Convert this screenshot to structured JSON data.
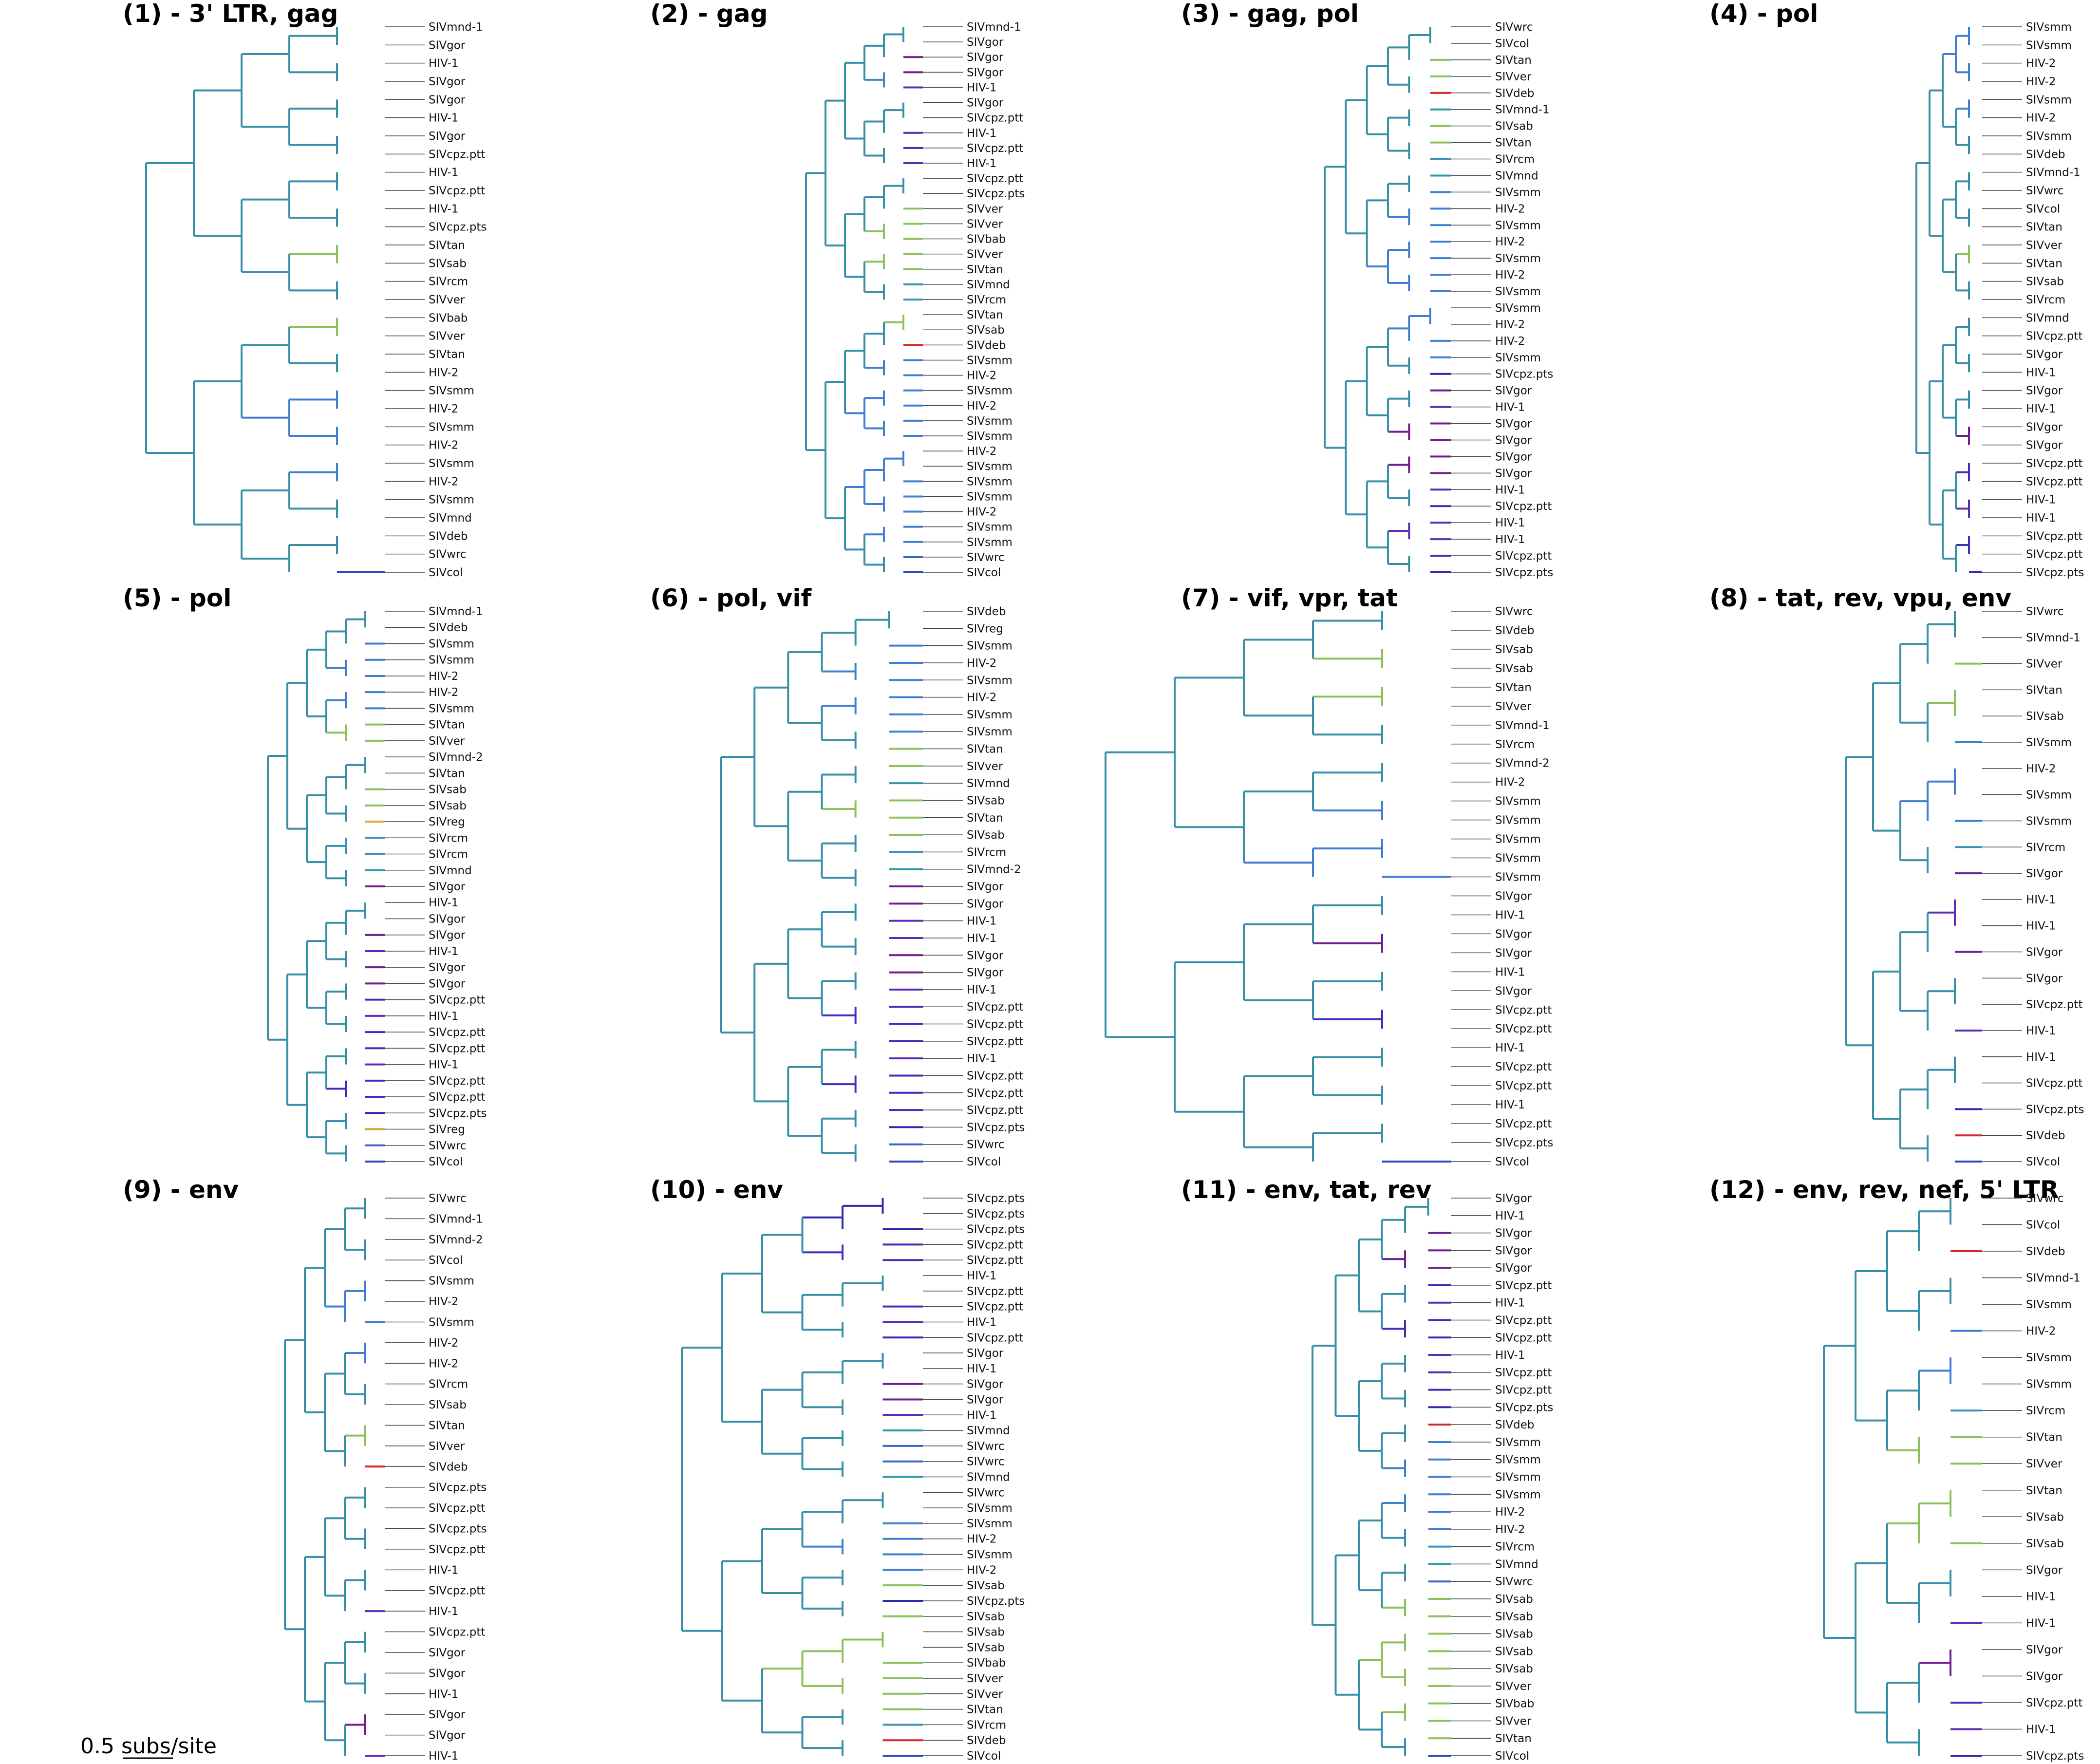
{
  "colors": {
    "HIV-1": "#5b2cb8",
    "SIVcpz.ptt": "#3b2fc0",
    "SIVcpz.pts": "#2c2aa8",
    "SIVgor": "#6f1d8f",
    "HIV-2": "#3f7ed0",
    "SIVsmm": "#3f7ed0",
    "SIVmnd": "#2f9aa6",
    "SIVmnd-1": "#2f9aa6",
    "SIVmnd-2": "#2f9aa6",
    "SIVrcm": "#3a92b8",
    "SIVdeb": "#d62828",
    "SIVwrc": "#3a64cc",
    "SIVcol": "#2b44c6",
    "SIVreg": "#d4a52c",
    "SIVtan": "#8cc05a",
    "SIVsab": "#8cc05a",
    "SIVver": "#8cc05a",
    "SIVbab": "#8cc05a",
    "internal": "#a9a9b8",
    "internal_teal": "#3a8fa8"
  },
  "scale": {
    "label": "0.5 subs/site"
  },
  "panels": [
    {
      "title": "(1) - 3' LTR, gag",
      "leaves": [
        "SIVmnd-1",
        "SIVgor",
        "HIV-1",
        "SIVgor",
        "SIVgor",
        "HIV-1",
        "SIVgor",
        "SIVcpz.ptt",
        "HIV-1",
        "SIVcpz.ptt",
        "HIV-1",
        "SIVcpz.pts",
        "SIVtan",
        "SIVsab",
        "SIVrcm",
        "SIVver",
        "SIVbab",
        "SIVver",
        "SIVtan",
        "HIV-2",
        "SIVsmm",
        "HIV-2",
        "SIVsmm",
        "HIV-2",
        "SIVsmm",
        "HIV-2",
        "SIVsmm",
        "SIVmnd",
        "SIVdeb",
        "SIVwrc",
        "SIVcol"
      ]
    },
    {
      "title": "(2) - gag",
      "leaves": [
        "SIVmnd-1",
        "SIVgor",
        "SIVgor",
        "SIVgor",
        "HIV-1",
        "SIVgor",
        "SIVcpz.ptt",
        "HIV-1",
        "SIVcpz.ptt",
        "HIV-1",
        "SIVcpz.ptt",
        "SIVcpz.pts",
        "SIVver",
        "SIVver",
        "SIVbab",
        "SIVver",
        "SIVtan",
        "SIVmnd",
        "SIVrcm",
        "SIVtan",
        "SIVsab",
        "SIVdeb",
        "SIVsmm",
        "HIV-2",
        "SIVsmm",
        "HIV-2",
        "SIVsmm",
        "SIVsmm",
        "HIV-2",
        "SIVsmm",
        "SIVsmm",
        "SIVsmm",
        "HIV-2",
        "SIVsmm",
        "SIVsmm",
        "SIVwrc",
        "SIVcol"
      ]
    },
    {
      "title": "(3) - gag, pol",
      "leaves": [
        "SIVwrc",
        "SIVcol",
        "SIVtan",
        "SIVver",
        "SIVdeb",
        "SIVmnd-1",
        "SIVsab",
        "SIVtan",
        "SIVrcm",
        "SIVmnd",
        "SIVsmm",
        "HIV-2",
        "SIVsmm",
        "HIV-2",
        "SIVsmm",
        "HIV-2",
        "SIVsmm",
        "SIVsmm",
        "HIV-2",
        "HIV-2",
        "SIVsmm",
        "SIVcpz.pts",
        "SIVgor",
        "HIV-1",
        "SIVgor",
        "SIVgor",
        "SIVgor",
        "SIVgor",
        "HIV-1",
        "SIVcpz.ptt",
        "HIV-1",
        "HIV-1",
        "SIVcpz.ptt",
        "SIVcpz.pts"
      ]
    },
    {
      "title": "(4) - pol",
      "leaves": [
        "SIVsmm",
        "SIVsmm",
        "HIV-2",
        "HIV-2",
        "SIVsmm",
        "HIV-2",
        "SIVsmm",
        "SIVdeb",
        "SIVmnd-1",
        "SIVwrc",
        "SIVcol",
        "SIVtan",
        "SIVver",
        "SIVtan",
        "SIVsab",
        "SIVrcm",
        "SIVmnd",
        "SIVcpz.ptt",
        "SIVgor",
        "HIV-1",
        "SIVgor",
        "HIV-1",
        "SIVgor",
        "SIVgor",
        "SIVcpz.ptt",
        "SIVcpz.ptt",
        "HIV-1",
        "HIV-1",
        "SIVcpz.ptt",
        "SIVcpz.ptt",
        "SIVcpz.pts"
      ]
    },
    {
      "title": "(5) - pol",
      "leaves": [
        "SIVmnd-1",
        "SIVdeb",
        "SIVsmm",
        "SIVsmm",
        "HIV-2",
        "HIV-2",
        "SIVsmm",
        "SIVtan",
        "SIVver",
        "SIVmnd-2",
        "SIVtan",
        "SIVsab",
        "SIVsab",
        "SIVreg",
        "SIVrcm",
        "SIVrcm",
        "SIVmnd",
        "SIVgor",
        "HIV-1",
        "SIVgor",
        "SIVgor",
        "HIV-1",
        "SIVgor",
        "SIVgor",
        "SIVcpz.ptt",
        "HIV-1",
        "SIVcpz.ptt",
        "SIVcpz.ptt",
        "HIV-1",
        "SIVcpz.ptt",
        "SIVcpz.ptt",
        "SIVcpz.pts",
        "SIVreg",
        "SIVwrc",
        "SIVcol"
      ]
    },
    {
      "title": "(6) - pol, vif",
      "leaves": [
        "SIVdeb",
        "SIVreg",
        "SIVsmm",
        "HIV-2",
        "SIVsmm",
        "HIV-2",
        "SIVsmm",
        "SIVsmm",
        "SIVtan",
        "SIVver",
        "SIVmnd",
        "SIVsab",
        "SIVtan",
        "SIVsab",
        "SIVrcm",
        "SIVmnd-2",
        "SIVgor",
        "SIVgor",
        "HIV-1",
        "HIV-1",
        "SIVgor",
        "SIVgor",
        "HIV-1",
        "SIVcpz.ptt",
        "SIVcpz.ptt",
        "SIVcpz.ptt",
        "HIV-1",
        "SIVcpz.ptt",
        "SIVcpz.ptt",
        "SIVcpz.ptt",
        "SIVcpz.pts",
        "SIVwrc",
        "SIVcol"
      ]
    },
    {
      "title": "(7) - vif, vpr, tat",
      "leaves": [
        "SIVwrc",
        "SIVdeb",
        "SIVsab",
        "SIVsab",
        "SIVtan",
        "SIVver",
        "SIVmnd-1",
        "SIVrcm",
        "SIVmnd-2",
        "HIV-2",
        "SIVsmm",
        "SIVsmm",
        "SIVsmm",
        "SIVsmm",
        "SIVsmm",
        "SIVgor",
        "HIV-1",
        "SIVgor",
        "SIVgor",
        "HIV-1",
        "SIVgor",
        "SIVcpz.ptt",
        "SIVcpz.ptt",
        "HIV-1",
        "SIVcpz.ptt",
        "SIVcpz.ptt",
        "HIV-1",
        "SIVcpz.ptt",
        "SIVcpz.pts",
        "SIVcol"
      ]
    },
    {
      "title": "(8) - tat, rev, vpu, env",
      "leaves": [
        "SIVwrc",
        "SIVmnd-1",
        "SIVver",
        "SIVtan",
        "SIVsab",
        "SIVsmm",
        "HIV-2",
        "SIVsmm",
        "SIVsmm",
        "SIVrcm",
        "SIVgor",
        "HIV-1",
        "HIV-1",
        "SIVgor",
        "SIVgor",
        "SIVcpz.ptt",
        "HIV-1",
        "HIV-1",
        "SIVcpz.ptt",
        "SIVcpz.pts",
        "SIVdeb",
        "SIVcol"
      ]
    },
    {
      "title": "(9) - env",
      "leaves": [
        "SIVwrc",
        "SIVmnd-1",
        "SIVmnd-2",
        "SIVcol",
        "SIVsmm",
        "HIV-2",
        "SIVsmm",
        "HIV-2",
        "HIV-2",
        "SIVrcm",
        "SIVsab",
        "SIVtan",
        "SIVver",
        "SIVdeb",
        "SIVcpz.pts",
        "SIVcpz.ptt",
        "SIVcpz.pts",
        "SIVcpz.ptt",
        "HIV-1",
        "SIVcpz.ptt",
        "HIV-1",
        "SIVcpz.ptt",
        "SIVgor",
        "SIVgor",
        "HIV-1",
        "SIVgor",
        "SIVgor",
        "HIV-1"
      ]
    },
    {
      "title": "(10) - env",
      "leaves": [
        "SIVcpz.pts",
        "SIVcpz.pts",
        "SIVcpz.pts",
        "SIVcpz.ptt",
        "SIVcpz.ptt",
        "HIV-1",
        "SIVcpz.ptt",
        "SIVcpz.ptt",
        "HIV-1",
        "SIVcpz.ptt",
        "SIVgor",
        "HIV-1",
        "SIVgor",
        "SIVgor",
        "HIV-1",
        "SIVmnd",
        "SIVwrc",
        "SIVwrc",
        "SIVmnd",
        "SIVwrc",
        "SIVsmm",
        "SIVsmm",
        "HIV-2",
        "SIVsmm",
        "HIV-2",
        "SIVsab",
        "SIVcpz.pts",
        "SIVsab",
        "SIVsab",
        "SIVsab",
        "SIVbab",
        "SIVver",
        "SIVver",
        "SIVtan",
        "SIVrcm",
        "SIVdeb",
        "SIVcol"
      ]
    },
    {
      "title": "(11) - env, tat, rev",
      "leaves": [
        "SIVgor",
        "HIV-1",
        "SIVgor",
        "SIVgor",
        "SIVgor",
        "SIVcpz.ptt",
        "HIV-1",
        "SIVcpz.ptt",
        "SIVcpz.ptt",
        "HIV-1",
        "SIVcpz.ptt",
        "SIVcpz.ptt",
        "SIVcpz.pts",
        "SIVdeb",
        "SIVsmm",
        "SIVsmm",
        "SIVsmm",
        "SIVsmm",
        "HIV-2",
        "HIV-2",
        "SIVrcm",
        "SIVmnd",
        "SIVwrc",
        "SIVsab",
        "SIVsab",
        "SIVsab",
        "SIVsab",
        "SIVsab",
        "SIVver",
        "SIVbab",
        "SIVver",
        "SIVtan",
        "SIVcol"
      ]
    },
    {
      "title": "(12) - env, rev, nef, 5' LTR",
      "leaves": [
        "SIVwrc",
        "SIVcol",
        "SIVdeb",
        "SIVmnd-1",
        "SIVsmm",
        "HIV-2",
        "SIVsmm",
        "SIVsmm",
        "SIVrcm",
        "SIVtan",
        "SIVver",
        "SIVtan",
        "SIVsab",
        "SIVsab",
        "SIVgor",
        "HIV-1",
        "HIV-1",
        "SIVgor",
        "SIVgor",
        "SIVcpz.ptt",
        "HIV-1",
        "SIVcpz.pts"
      ]
    }
  ]
}
